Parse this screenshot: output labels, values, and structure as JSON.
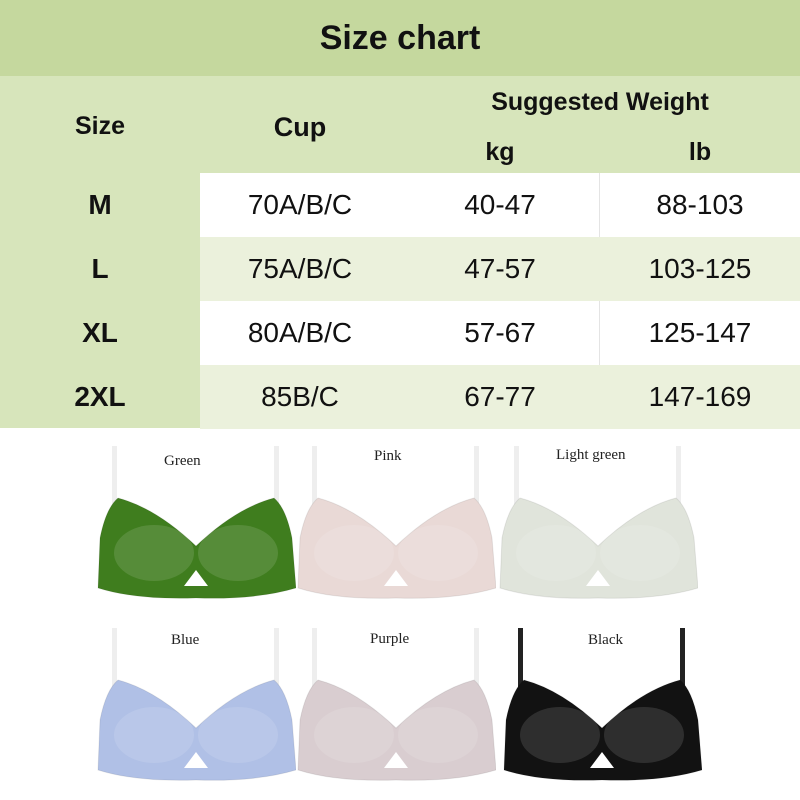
{
  "title": "Size chart",
  "headers": {
    "size": "Size",
    "cup": "Cup",
    "weight": "Suggested Weight",
    "kg": "kg",
    "lb": "lb"
  },
  "rows": [
    {
      "size": "M",
      "cup": "70A/B/C",
      "kg": "40-47",
      "lb": "88-103"
    },
    {
      "size": "L",
      "cup": "75A/B/C",
      "kg": "47-57",
      "lb": "103-125"
    },
    {
      "size": "XL",
      "cup": "80A/B/C",
      "kg": "57-67",
      "lb": "125-147"
    },
    {
      "size": "2XL",
      "cup": "85B/C",
      "kg": "67-77",
      "lb": "147-169"
    }
  ],
  "products": [
    {
      "label": "Green",
      "color": "#3f7d1e"
    },
    {
      "label": "Pink",
      "color": "#e9d9d6"
    },
    {
      "label": "Light green",
      "color": "#e0e4db"
    },
    {
      "label": "Blue",
      "color": "#b0c0e6"
    },
    {
      "label": "Purple",
      "color": "#d9cdd0"
    },
    {
      "label": "Black",
      "color": "#121212"
    }
  ],
  "colors": {
    "title_bg": "#c5d89e",
    "header_bg": "#d7e5bb",
    "alt_row": "#ebf1dc"
  }
}
